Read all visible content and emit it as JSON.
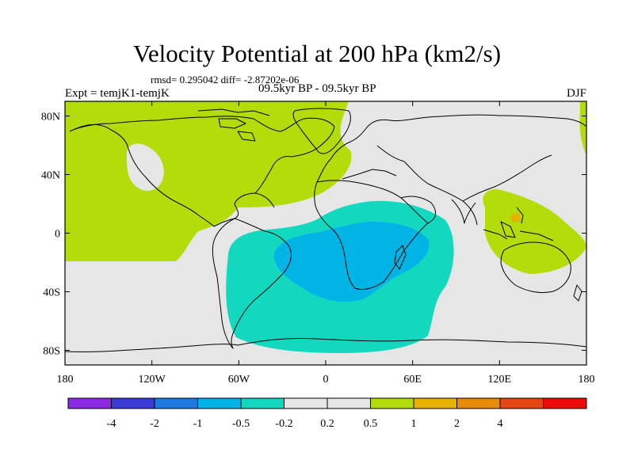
{
  "title": "Velocity Potential at 200 hPa (km2/s)",
  "stats_line": "rmsd= 0.295042 diff= -2.87202e-06",
  "experiment": "Expt = temjK1-temjK",
  "period": "09.5kyr BP - 09.5kyr BP",
  "season": "DJF",
  "map": {
    "projection": "cylindrical equidistant",
    "lon_range": [
      -180,
      180
    ],
    "lat_range": [
      -90,
      90
    ],
    "x_ticks": [
      {
        "lon": -180,
        "label": "180"
      },
      {
        "lon": -120,
        "label": "120W"
      },
      {
        "lon": -60,
        "label": "60W"
      },
      {
        "lon": 0,
        "label": "0"
      },
      {
        "lon": 60,
        "label": "60E"
      },
      {
        "lon": 120,
        "label": "120E"
      },
      {
        "lon": 180,
        "label": "180"
      }
    ],
    "y_ticks": [
      {
        "lat": 80,
        "label": "80N"
      },
      {
        "lat": 40,
        "label": "40N"
      },
      {
        "lat": 0,
        "label": "0"
      },
      {
        "lat": -40,
        "label": "40S"
      },
      {
        "lat": -80,
        "label": "80S"
      }
    ]
  },
  "colorbar": {
    "colors": [
      "#8a2be2",
      "#3a3ad8",
      "#1e7ae0",
      "#00b4e6",
      "#12d8c0",
      "#e6e6e6",
      "#e6e6e6",
      "#b4dc0a",
      "#e6b400",
      "#e68c0a",
      "#e64614",
      "#ee0a0a"
    ],
    "labels": [
      {
        "index": 1,
        "text": "-4"
      },
      {
        "index": 2,
        "text": "-2"
      },
      {
        "index": 3,
        "text": "-1"
      },
      {
        "index": 4,
        "text": "-0.5"
      },
      {
        "index": 5,
        "text": "-0.2"
      },
      {
        "index": 6,
        "text": "0.2"
      },
      {
        "index": 7,
        "text": "0.5"
      },
      {
        "index": 8,
        "text": "1"
      },
      {
        "index": 9,
        "text": "2"
      },
      {
        "index": 10,
        "text": "4"
      }
    ]
  },
  "colors": {
    "background_field": "#e6e6e6",
    "positive_field": "#b4dc0a",
    "negative_weak": "#12d8c0",
    "negative_moderate": "#00b4e6",
    "positive_strong": "#e6b400",
    "coastline": "#000000"
  }
}
